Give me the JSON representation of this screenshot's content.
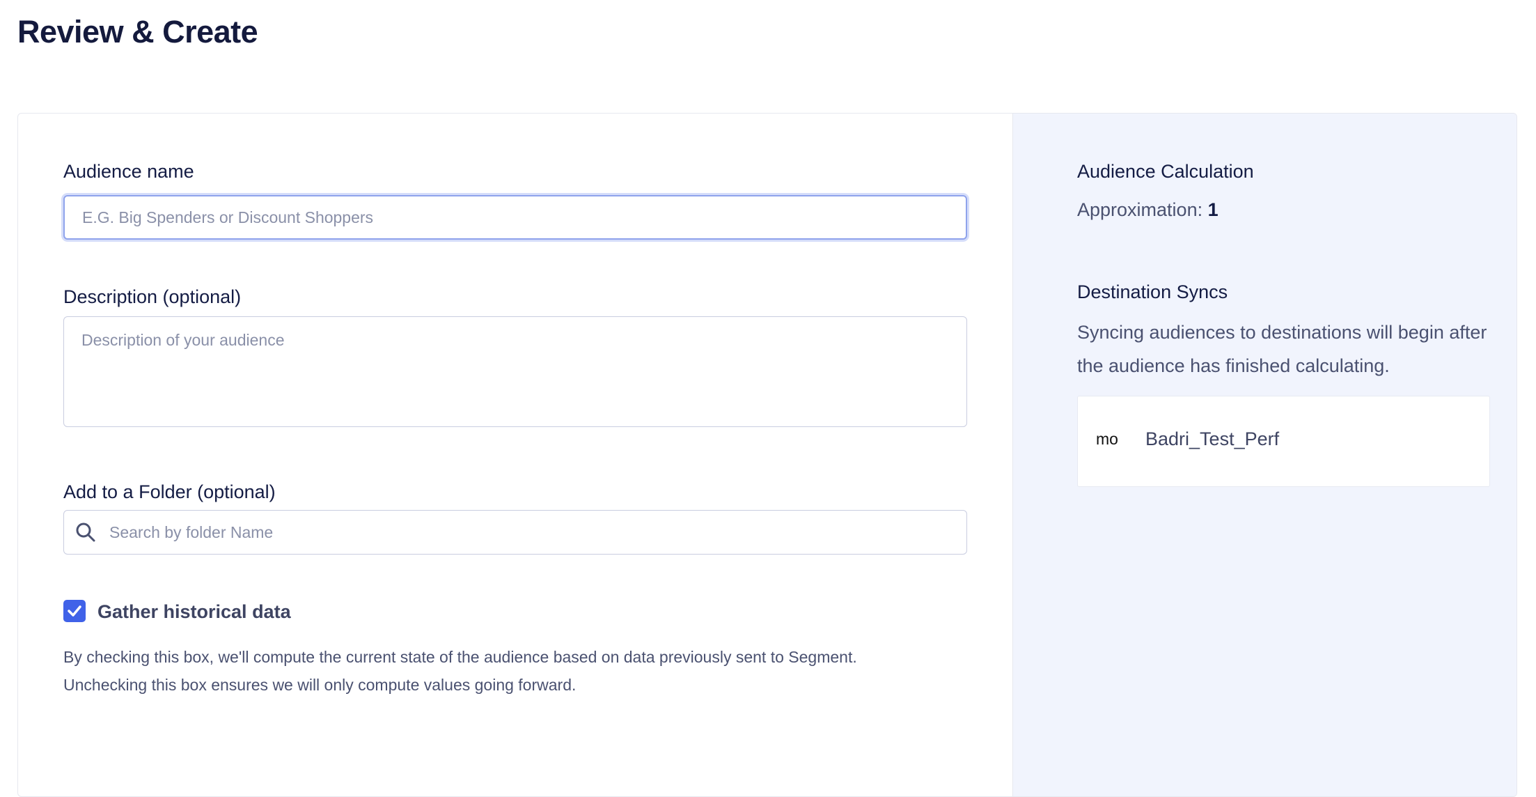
{
  "page": {
    "title": "Review & Create"
  },
  "form": {
    "audience_name": {
      "label": "Audience name",
      "placeholder": "E.G. Big Spenders or Discount Shoppers",
      "value": ""
    },
    "description": {
      "label": "Description (optional)",
      "placeholder": "Description of your audience",
      "value": ""
    },
    "folder": {
      "label": "Add to a Folder (optional)",
      "placeholder": "Search by folder Name",
      "icon": "search-icon"
    },
    "historical": {
      "label": "Gather historical data",
      "checked": true,
      "help_line1": "By checking this box, we'll compute the current state of the audience based on data previously sent to Segment.",
      "help_line2": "Unchecking this box ensures we will only compute values going forward."
    }
  },
  "summary": {
    "calc_title": "Audience Calculation",
    "approx_label": "Approximation:",
    "approx_value": "1",
    "syncs_title": "Destination Syncs",
    "syncs_text": "Syncing audiences to destinations will begin after the audience has finished calculating.",
    "destinations": [
      {
        "logo": "mo",
        "name": "Badri_Test_Perf"
      }
    ]
  },
  "colors": {
    "accent": "#4062e8",
    "panel_bg": "#f1f4fd",
    "heading": "#141a3d"
  }
}
